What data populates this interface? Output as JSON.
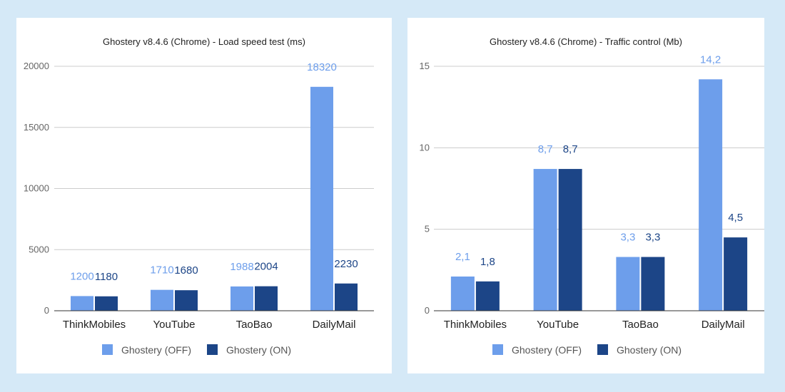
{
  "colors": {
    "off": "#6d9eeb",
    "on": "#1c4587",
    "grid": "#cccccc",
    "axis": "#333333"
  },
  "legend": {
    "off_label": "Ghostery (OFF)",
    "on_label": "Ghostery (ON)"
  },
  "chart_data": [
    {
      "type": "bar",
      "title": "Ghostery v8.4.6 (Chrome) - Load speed test (ms)",
      "categories": [
        "ThinkMobiles",
        "YouTube",
        "TaoBao",
        "DailyMail"
      ],
      "series": [
        {
          "name": "Ghostery (OFF)",
          "values": [
            1200,
            1710,
            1988,
            18320
          ],
          "labels": [
            "1200",
            "1710",
            "1988",
            "18320"
          ]
        },
        {
          "name": "Ghostery (ON)",
          "values": [
            1180,
            1680,
            2004,
            2230
          ],
          "labels": [
            "1180",
            "1680",
            "2004",
            "2230"
          ]
        }
      ],
      "ylim": [
        0,
        20000
      ],
      "yticks": [
        0,
        5000,
        10000,
        15000,
        20000
      ],
      "ytick_labels": [
        "0",
        "5000",
        "10000",
        "15000",
        "20000"
      ],
      "grid": true,
      "legend_position": "bottom"
    },
    {
      "type": "bar",
      "title": "Ghostery v8.4.6 (Chrome) - Traffic control (Mb)",
      "categories": [
        "ThinkMobiles",
        "YouTube",
        "TaoBao",
        "DailyMail"
      ],
      "series": [
        {
          "name": "Ghostery (OFF)",
          "values": [
            2.1,
            8.7,
            3.3,
            14.2
          ],
          "labels": [
            "2,1",
            "8,7",
            "3,3",
            "14,2"
          ]
        },
        {
          "name": "Ghostery (ON)",
          "values": [
            1.8,
            8.7,
            3.3,
            4.5
          ],
          "labels": [
            "1,8",
            "8,7",
            "3,3",
            "4,5"
          ]
        }
      ],
      "ylim": [
        0,
        15
      ],
      "yticks": [
        0,
        5,
        10,
        15
      ],
      "ytick_labels": [
        "0",
        "5",
        "10",
        "15"
      ],
      "grid": true,
      "legend_position": "bottom"
    }
  ]
}
